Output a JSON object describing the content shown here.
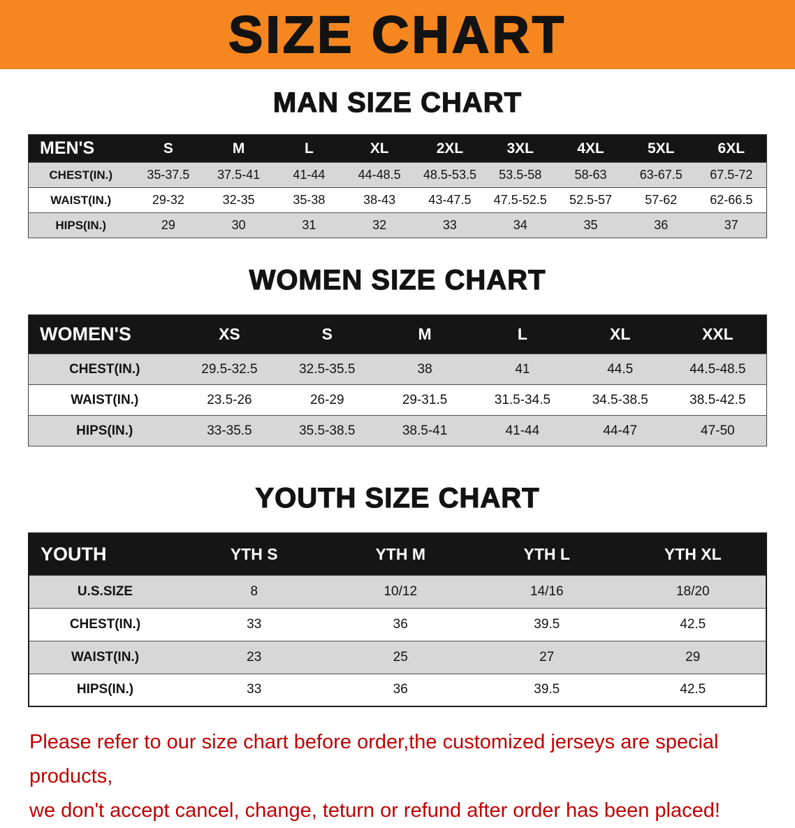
{
  "banner": {
    "title": "SIZE CHART"
  },
  "colors": {
    "banner-bg": "#F6861F",
    "header-bg": "#151515",
    "stripe": "#D7D7D7",
    "note-red": "#C00000",
    "ink": "#131313"
  },
  "chart_data": [
    {
      "type": "table",
      "title": "MAN SIZE CHART",
      "header": [
        "MEN'S",
        "S",
        "M",
        "L",
        "XL",
        "2XL",
        "3XL",
        "4XL",
        "5XL",
        "6XL"
      ],
      "rows": [
        [
          "CHEST(IN.)",
          "35-37.5",
          "37.5-41",
          "41-44",
          "44-48.5",
          "48.5-53.5",
          "53.5-58",
          "58-63",
          "63-67.5",
          "67.5-72"
        ],
        [
          "WAIST(IN.)",
          "29-32",
          "32-35",
          "35-38",
          "38-43",
          "43-47.5",
          "47.5-52.5",
          "52.5-57",
          "57-62",
          "62-66.5"
        ],
        [
          "HIPS(IN.)",
          "29",
          "30",
          "31",
          "32",
          "33",
          "34",
          "35",
          "36",
          "37"
        ]
      ]
    },
    {
      "type": "table",
      "title": "WOMEN SIZE CHART",
      "header": [
        "WOMEN'S",
        "XS",
        "S",
        "M",
        "L",
        "XL",
        "XXL"
      ],
      "rows": [
        [
          "CHEST(IN.)",
          "29.5-32.5",
          "32.5-35.5",
          "38",
          "41",
          "44.5",
          "44.5-48.5"
        ],
        [
          "WAIST(IN.)",
          "23.5-26",
          "26-29",
          "29-31.5",
          "31.5-34.5",
          "34.5-38.5",
          "38.5-42.5"
        ],
        [
          "HIPS(IN.)",
          "33-35.5",
          "35.5-38.5",
          "38.5-41",
          "41-44",
          "44-47",
          "47-50"
        ]
      ]
    },
    {
      "type": "table",
      "title": "YOUTH SIZE CHART",
      "header": [
        "YOUTH",
        "YTH S",
        "YTH M",
        "YTH L",
        "YTH XL"
      ],
      "rows": [
        [
          "U.S.SIZE",
          "8",
          "10/12",
          "14/16",
          "18/20"
        ],
        [
          "CHEST(IN.)",
          "33",
          "36",
          "39.5",
          "42.5"
        ],
        [
          "WAIST(IN.)",
          "23",
          "25",
          "27",
          "29"
        ],
        [
          "HIPS(IN.)",
          "33",
          "36",
          "39.5",
          "42.5"
        ]
      ]
    }
  ],
  "note": {
    "line1": "Please refer to our size chart before order,the customized jerseys are special products,",
    "line2": "we don't accept cancel, change, teturn or refund after order has been placed!"
  }
}
